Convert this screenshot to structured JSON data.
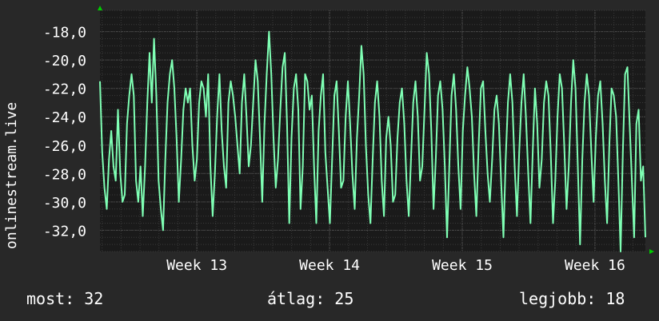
{
  "chart_data": {
    "type": "line",
    "ylabel": "onlinestream.live",
    "ylim": [
      -33.5,
      -16.5
    ],
    "y_ticks": [
      "-18,0",
      "-20,0",
      "-22,0",
      "-24,0",
      "-26,0",
      "-28,0",
      "-30,0",
      "-32,0"
    ],
    "y_tick_values": [
      -18,
      -20,
      -22,
      -24,
      -26,
      -28,
      -30,
      -32
    ],
    "x_ticks": [
      "Week 13",
      "Week 14",
      "Week 15",
      "Week 16"
    ],
    "x_tick_values": [
      13,
      14,
      15,
      16
    ],
    "xlim": [
      12.27,
      16.38
    ],
    "grid": true,
    "colors": {
      "background": "#282828",
      "plot": "#1a1a1a",
      "line": "#7fffb4",
      "grid": "#555555",
      "axis_arrow": "#00cc00"
    },
    "series": [
      {
        "values": [
          -21.5,
          -26.5,
          -29.0,
          -30.5,
          -27.0,
          -25.0,
          -27.5,
          -28.5,
          -23.5,
          -28.0,
          -30.0,
          -29.5,
          -24.5,
          -22.5,
          -21.0,
          -22.5,
          -28.5,
          -30.0,
          -27.5,
          -31.0,
          -27.5,
          -23.0,
          -19.5,
          -23.0,
          -18.5,
          -22.5,
          -28.5,
          -30.5,
          -32.0,
          -27.0,
          -23.0,
          -21.0,
          -20.0,
          -22.0,
          -25.5,
          -30.0,
          -27.0,
          -23.5,
          -22.0,
          -23.0,
          -22.0,
          -26.0,
          -28.5,
          -27.0,
          -23.0,
          -21.5,
          -22.0,
          -24.0,
          -21.0,
          -27.5,
          -31.0,
          -28.0,
          -24.0,
          -21.0,
          -25.0,
          -27.5,
          -29.0,
          -23.0,
          -21.5,
          -22.5,
          -24.0,
          -26.0,
          -28.0,
          -23.0,
          -21.0,
          -24.0,
          -27.5,
          -26.0,
          -23.0,
          -20.0,
          -21.5,
          -25.5,
          -30.0,
          -24.5,
          -21.0,
          -18.0,
          -21.0,
          -25.5,
          -29.0,
          -27.0,
          -23.5,
          -20.5,
          -19.5,
          -24.5,
          -31.5,
          -25.5,
          -22.0,
          -21.0,
          -23.5,
          -30.5,
          -27.5,
          -21.0,
          -21.5,
          -23.5,
          -22.5,
          -27.5,
          -31.5,
          -25.0,
          -22.5,
          -21.0,
          -26.5,
          -29.0,
          -31.5,
          -27.0,
          -22.5,
          -21.5,
          -25.0,
          -29.0,
          -28.5,
          -24.0,
          -21.5,
          -24.5,
          -28.0,
          -30.5,
          -25.5,
          -22.5,
          -19.0,
          -21.0,
          -26.0,
          -29.5,
          -31.5,
          -27.0,
          -23.0,
          -21.5,
          -24.0,
          -28.5,
          -31.0,
          -25.5,
          -24.0,
          -26.0,
          -30.0,
          -29.5,
          -25.5,
          -23.0,
          -22.0,
          -24.5,
          -28.5,
          -31.0,
          -27.0,
          -23.0,
          -21.5,
          -24.0,
          -28.5,
          -27.5,
          -23.5,
          -19.5,
          -21.0,
          -25.0,
          -30.5,
          -27.0,
          -22.5,
          -21.5,
          -23.5,
          -27.5,
          -32.5,
          -27.5,
          -22.5,
          -21.0,
          -23.5,
          -27.5,
          -30.5,
          -25.0,
          -22.5,
          -20.5,
          -22.0,
          -24.0,
          -28.0,
          -31.0,
          -26.0,
          -22.0,
          -21.5,
          -25.0,
          -28.0,
          -30.0,
          -27.0,
          -23.5,
          -22.5,
          -24.5,
          -28.5,
          -32.5,
          -27.0,
          -23.0,
          -21.0,
          -23.0,
          -27.5,
          -31.0,
          -26.5,
          -23.0,
          -21.0,
          -24.0,
          -28.0,
          -31.5,
          -26.5,
          -22.0,
          -24.5,
          -29.0,
          -27.0,
          -23.0,
          -21.5,
          -22.5,
          -26.5,
          -31.5,
          -28.5,
          -24.0,
          -21.0,
          -22.0,
          -26.0,
          -30.5,
          -27.5,
          -23.0,
          -20.0,
          -22.0,
          -27.5,
          -33.0,
          -27.0,
          -23.0,
          -21.0,
          -22.5,
          -26.5,
          -30.0,
          -25.5,
          -22.5,
          -21.5,
          -24.5,
          -28.5,
          -31.5,
          -26.0,
          -22.0,
          -22.5,
          -24.0,
          -28.5,
          -33.5,
          -26.5,
          -21.0,
          -20.5,
          -24.5,
          -28.5,
          -32.5,
          -24.5,
          -23.5,
          -28.5,
          -27.5,
          -32.5
        ]
      }
    ]
  },
  "legend": {
    "current": "most: 32",
    "average": "átlag: 25",
    "best": "legjobb: 18"
  }
}
